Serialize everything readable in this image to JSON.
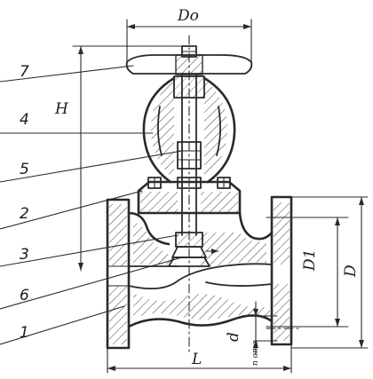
{
  "callouts": [
    {
      "id": "7",
      "text": "7"
    },
    {
      "id": "4",
      "text": "4"
    },
    {
      "id": "5",
      "text": "5"
    },
    {
      "id": "2",
      "text": "2"
    },
    {
      "id": "3",
      "text": "3"
    },
    {
      "id": "6",
      "text": "6"
    },
    {
      "id": "1",
      "text": "1"
    }
  ],
  "dimensions": {
    "D0": "Do",
    "H": "H",
    "D1": "D1",
    "D": "D",
    "d": "d",
    "n_otv": "n отв",
    "L": "L"
  },
  "colors": {
    "ink": "#2a2a2a",
    "paper": "#ffffff"
  }
}
